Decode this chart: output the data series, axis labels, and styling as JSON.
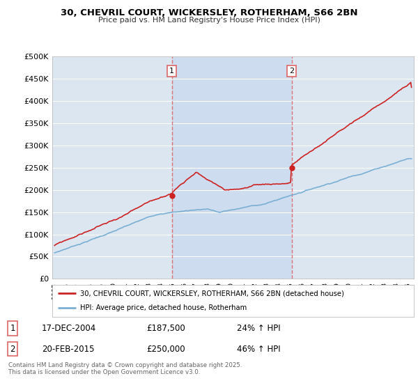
{
  "title_line1": "30, CHEVRIL COURT, WICKERSLEY, ROTHERHAM, S66 2BN",
  "title_line2": "Price paid vs. HM Land Registry's House Price Index (HPI)",
  "background_color": "#ffffff",
  "plot_bg_color": "#dce6f1",
  "highlight_color": "#c8d8ee",
  "grid_color": "#ffffff",
  "red_line_color": "#cc2222",
  "blue_line_color": "#7aafd4",
  "vline_color": "#dd6666",
  "marker1_x": 2004.96,
  "marker2_x": 2015.12,
  "xmin": 1994.8,
  "xmax": 2025.5,
  "ymin": 0,
  "ymax": 500000,
  "yticks": [
    0,
    50000,
    100000,
    150000,
    200000,
    250000,
    300000,
    350000,
    400000,
    450000,
    500000
  ],
  "ytick_labels": [
    "£0",
    "£50K",
    "£100K",
    "£150K",
    "£200K",
    "£250K",
    "£300K",
    "£350K",
    "£400K",
    "£450K",
    "£500K"
  ],
  "legend_label_red": "30, CHEVRIL COURT, WICKERSLEY, ROTHERHAM, S66 2BN (detached house)",
  "legend_label_blue": "HPI: Average price, detached house, Rotherham",
  "annotation1_label": "1",
  "annotation1_date": "17-DEC-2004",
  "annotation1_price": "£187,500",
  "annotation1_hpi": "24% ↑ HPI",
  "annotation2_label": "2",
  "annotation2_date": "20-FEB-2015",
  "annotation2_price": "£250,000",
  "annotation2_hpi": "46% ↑ HPI",
  "footer": "Contains HM Land Registry data © Crown copyright and database right 2025.\nThis data is licensed under the Open Government Licence v3.0.",
  "sale1_price": 187500,
  "sale2_price": 250000
}
